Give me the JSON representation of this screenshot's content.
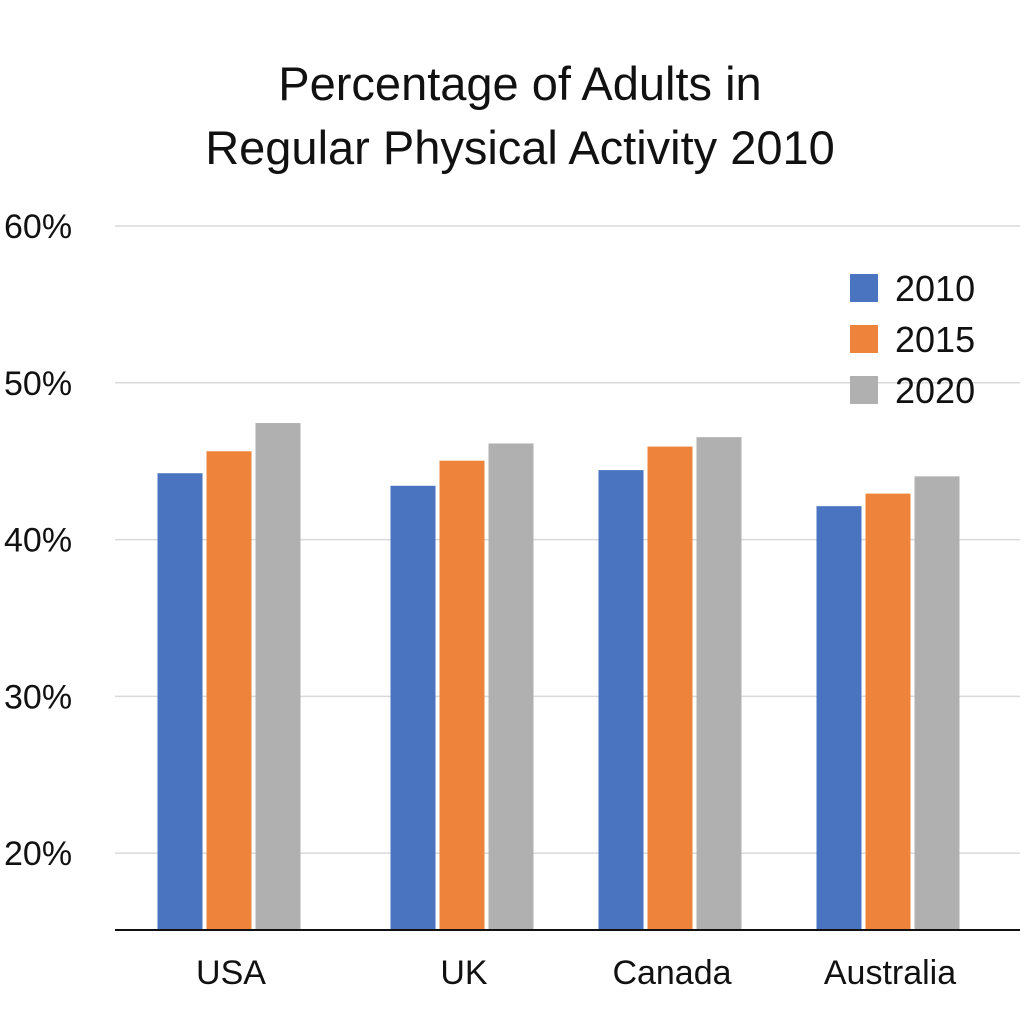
{
  "chart_data": {
    "type": "bar",
    "title_lines": [
      "Percentage of Adults in",
      "Regular Physical Activity 2010"
    ],
    "xlabel": "",
    "ylabel": "",
    "categories": [
      "USA",
      "UK",
      "Canada",
      "Australia"
    ],
    "series": [
      {
        "name": "2010",
        "color": "#4a74c0",
        "values": [
          44.2,
          43.4,
          44.4,
          42.1
        ]
      },
      {
        "name": "2015",
        "color": "#ee843c",
        "values": [
          45.6,
          45.0,
          45.9,
          42.9
        ]
      },
      {
        "name": "2020",
        "color": "#b0b0b0",
        "values": [
          47.4,
          46.1,
          46.5,
          44.0
        ]
      }
    ],
    "yticks": [
      20,
      30,
      40,
      50,
      60
    ],
    "ytick_labels": [
      "20%",
      "30%",
      "40%",
      "50%",
      "60%"
    ],
    "ylim": [
      15.1,
      60
    ],
    "grid": true,
    "legend_position": "top-right"
  }
}
